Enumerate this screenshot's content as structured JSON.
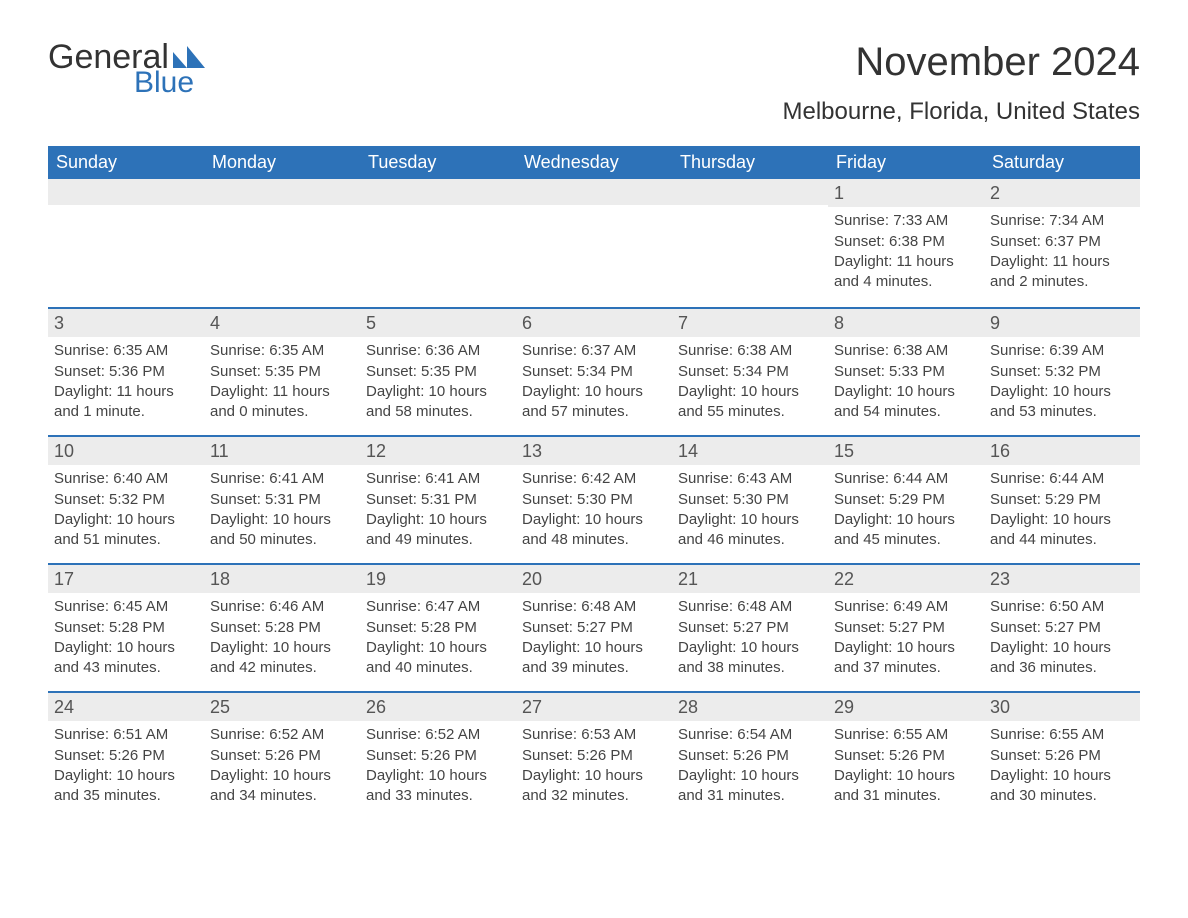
{
  "logo": {
    "word1": "General",
    "word2": "Blue"
  },
  "title": "November 2024",
  "subtitle": "Melbourne, Florida, United States",
  "colors": {
    "header_bg": "#2d72b8",
    "header_text": "#ffffff",
    "daynum_bg": "#ececec",
    "week_border": "#2d72b8",
    "body_text": "#444444",
    "title_text": "#333333",
    "page_bg": "#ffffff"
  },
  "day_headers": [
    "Sunday",
    "Monday",
    "Tuesday",
    "Wednesday",
    "Thursday",
    "Friday",
    "Saturday"
  ],
  "weeks": [
    [
      {
        "empty": true
      },
      {
        "empty": true
      },
      {
        "empty": true
      },
      {
        "empty": true
      },
      {
        "empty": true
      },
      {
        "num": "1",
        "sunrise": "Sunrise: 7:33 AM",
        "sunset": "Sunset: 6:38 PM",
        "daylight": "Daylight: 11 hours and 4 minutes."
      },
      {
        "num": "2",
        "sunrise": "Sunrise: 7:34 AM",
        "sunset": "Sunset: 6:37 PM",
        "daylight": "Daylight: 11 hours and 2 minutes."
      }
    ],
    [
      {
        "num": "3",
        "sunrise": "Sunrise: 6:35 AM",
        "sunset": "Sunset: 5:36 PM",
        "daylight": "Daylight: 11 hours and 1 minute."
      },
      {
        "num": "4",
        "sunrise": "Sunrise: 6:35 AM",
        "sunset": "Sunset: 5:35 PM",
        "daylight": "Daylight: 11 hours and 0 minutes."
      },
      {
        "num": "5",
        "sunrise": "Sunrise: 6:36 AM",
        "sunset": "Sunset: 5:35 PM",
        "daylight": "Daylight: 10 hours and 58 minutes."
      },
      {
        "num": "6",
        "sunrise": "Sunrise: 6:37 AM",
        "sunset": "Sunset: 5:34 PM",
        "daylight": "Daylight: 10 hours and 57 minutes."
      },
      {
        "num": "7",
        "sunrise": "Sunrise: 6:38 AM",
        "sunset": "Sunset: 5:34 PM",
        "daylight": "Daylight: 10 hours and 55 minutes."
      },
      {
        "num": "8",
        "sunrise": "Sunrise: 6:38 AM",
        "sunset": "Sunset: 5:33 PM",
        "daylight": "Daylight: 10 hours and 54 minutes."
      },
      {
        "num": "9",
        "sunrise": "Sunrise: 6:39 AM",
        "sunset": "Sunset: 5:32 PM",
        "daylight": "Daylight: 10 hours and 53 minutes."
      }
    ],
    [
      {
        "num": "10",
        "sunrise": "Sunrise: 6:40 AM",
        "sunset": "Sunset: 5:32 PM",
        "daylight": "Daylight: 10 hours and 51 minutes."
      },
      {
        "num": "11",
        "sunrise": "Sunrise: 6:41 AM",
        "sunset": "Sunset: 5:31 PM",
        "daylight": "Daylight: 10 hours and 50 minutes."
      },
      {
        "num": "12",
        "sunrise": "Sunrise: 6:41 AM",
        "sunset": "Sunset: 5:31 PM",
        "daylight": "Daylight: 10 hours and 49 minutes."
      },
      {
        "num": "13",
        "sunrise": "Sunrise: 6:42 AM",
        "sunset": "Sunset: 5:30 PM",
        "daylight": "Daylight: 10 hours and 48 minutes."
      },
      {
        "num": "14",
        "sunrise": "Sunrise: 6:43 AM",
        "sunset": "Sunset: 5:30 PM",
        "daylight": "Daylight: 10 hours and 46 minutes."
      },
      {
        "num": "15",
        "sunrise": "Sunrise: 6:44 AM",
        "sunset": "Sunset: 5:29 PM",
        "daylight": "Daylight: 10 hours and 45 minutes."
      },
      {
        "num": "16",
        "sunrise": "Sunrise: 6:44 AM",
        "sunset": "Sunset: 5:29 PM",
        "daylight": "Daylight: 10 hours and 44 minutes."
      }
    ],
    [
      {
        "num": "17",
        "sunrise": "Sunrise: 6:45 AM",
        "sunset": "Sunset: 5:28 PM",
        "daylight": "Daylight: 10 hours and 43 minutes."
      },
      {
        "num": "18",
        "sunrise": "Sunrise: 6:46 AM",
        "sunset": "Sunset: 5:28 PM",
        "daylight": "Daylight: 10 hours and 42 minutes."
      },
      {
        "num": "19",
        "sunrise": "Sunrise: 6:47 AM",
        "sunset": "Sunset: 5:28 PM",
        "daylight": "Daylight: 10 hours and 40 minutes."
      },
      {
        "num": "20",
        "sunrise": "Sunrise: 6:48 AM",
        "sunset": "Sunset: 5:27 PM",
        "daylight": "Daylight: 10 hours and 39 minutes."
      },
      {
        "num": "21",
        "sunrise": "Sunrise: 6:48 AM",
        "sunset": "Sunset: 5:27 PM",
        "daylight": "Daylight: 10 hours and 38 minutes."
      },
      {
        "num": "22",
        "sunrise": "Sunrise: 6:49 AM",
        "sunset": "Sunset: 5:27 PM",
        "daylight": "Daylight: 10 hours and 37 minutes."
      },
      {
        "num": "23",
        "sunrise": "Sunrise: 6:50 AM",
        "sunset": "Sunset: 5:27 PM",
        "daylight": "Daylight: 10 hours and 36 minutes."
      }
    ],
    [
      {
        "num": "24",
        "sunrise": "Sunrise: 6:51 AM",
        "sunset": "Sunset: 5:26 PM",
        "daylight": "Daylight: 10 hours and 35 minutes."
      },
      {
        "num": "25",
        "sunrise": "Sunrise: 6:52 AM",
        "sunset": "Sunset: 5:26 PM",
        "daylight": "Daylight: 10 hours and 34 minutes."
      },
      {
        "num": "26",
        "sunrise": "Sunrise: 6:52 AM",
        "sunset": "Sunset: 5:26 PM",
        "daylight": "Daylight: 10 hours and 33 minutes."
      },
      {
        "num": "27",
        "sunrise": "Sunrise: 6:53 AM",
        "sunset": "Sunset: 5:26 PM",
        "daylight": "Daylight: 10 hours and 32 minutes."
      },
      {
        "num": "28",
        "sunrise": "Sunrise: 6:54 AM",
        "sunset": "Sunset: 5:26 PM",
        "daylight": "Daylight: 10 hours and 31 minutes."
      },
      {
        "num": "29",
        "sunrise": "Sunrise: 6:55 AM",
        "sunset": "Sunset: 5:26 PM",
        "daylight": "Daylight: 10 hours and 31 minutes."
      },
      {
        "num": "30",
        "sunrise": "Sunrise: 6:55 AM",
        "sunset": "Sunset: 5:26 PM",
        "daylight": "Daylight: 10 hours and 30 minutes."
      }
    ]
  ]
}
